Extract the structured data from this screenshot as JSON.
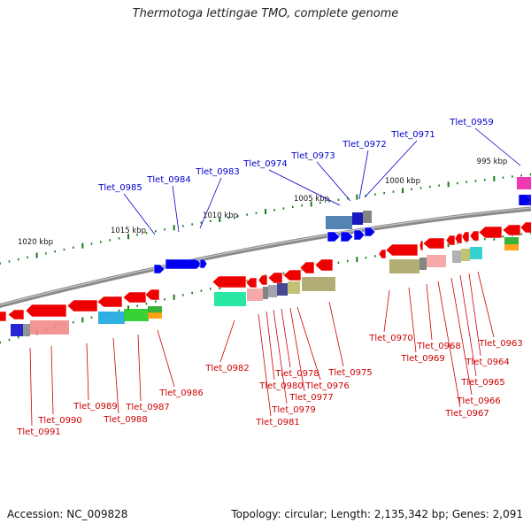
{
  "title": "Thermotoga lettingae TMO, complete genome",
  "footer": {
    "accession": "Accession: NC_009828",
    "topology": "Topology: circular; Length: 2,135,342 bp; Genes: 2,091"
  },
  "colors": {
    "backbone": "#7a7a7a",
    "tick": "#1a7a1a",
    "forward_gene": "#0000ee",
    "reverse_gene": "#ee0000",
    "forward_label": "#0000cc",
    "reverse_label": "#cc0000"
  },
  "scale_labels": [
    "995 kbp",
    "1000 kbp",
    "1005 kbp",
    "1010 kbp",
    "1015 kbp",
    "1020 kbp"
  ],
  "forward_labels": [
    "Tlet_0985",
    "Tlet_0984",
    "Tlet_0983",
    "Tlet_0974",
    "Tlet_0973",
    "Tlet_0972",
    "Tlet_0971",
    "Tlet_0959"
  ],
  "reverse_labels": [
    "Tlet_0991",
    "Tlet_0990",
    "Tlet_0989",
    "Tlet_0988",
    "Tlet_0987",
    "Tlet_0986",
    "Tlet_0982",
    "Tlet_0981",
    "Tlet_0980",
    "Tlet_0979",
    "Tlet_0978",
    "Tlet_0977",
    "Tlet_0976",
    "Tlet_0975",
    "Tlet_0970",
    "Tlet_0969",
    "Tlet_0968",
    "Tlet_0967",
    "Tlet_0966",
    "Tlet_0965",
    "Tlet_0964",
    "Tlet_0963"
  ]
}
